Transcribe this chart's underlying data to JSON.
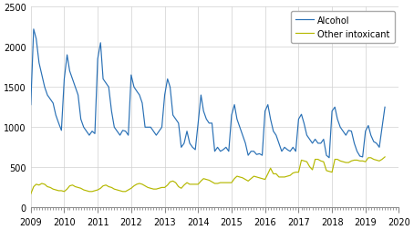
{
  "alcohol": [
    1280,
    2220,
    2100,
    1800,
    1650,
    1500,
    1400,
    1350,
    1300,
    1150,
    1050,
    960,
    1600,
    1900,
    1700,
    1600,
    1500,
    1400,
    1100,
    1000,
    950,
    900,
    950,
    920,
    1850,
    2050,
    1600,
    1550,
    1500,
    1200,
    1000,
    950,
    900,
    960,
    950,
    900,
    1650,
    1500,
    1450,
    1400,
    1300,
    1000,
    1000,
    1000,
    950,
    900,
    950,
    1000,
    1400,
    1600,
    1500,
    1150,
    1100,
    1050,
    750,
    800,
    950,
    800,
    750,
    720,
    1050,
    1400,
    1200,
    1100,
    1050,
    1050,
    700,
    750,
    700,
    720,
    750,
    700,
    1150,
    1280,
    1100,
    1000,
    900,
    800,
    650,
    700,
    700,
    660,
    670,
    650,
    1200,
    1280,
    1100,
    950,
    900,
    800,
    700,
    750,
    720,
    700,
    750,
    700,
    1100,
    1160,
    1050,
    900,
    850,
    800,
    850,
    800,
    800,
    850,
    650,
    620,
    1200,
    1250,
    1100,
    1000,
    950,
    900,
    960,
    950,
    800,
    700,
    640,
    630,
    950,
    1020,
    900,
    820,
    800,
    750,
    1000,
    1250
  ],
  "other": [
    170,
    260,
    290,
    280,
    300,
    290,
    260,
    250,
    230,
    220,
    210,
    210,
    200,
    230,
    270,
    280,
    260,
    250,
    240,
    220,
    210,
    200,
    200,
    210,
    220,
    240,
    270,
    280,
    260,
    250,
    230,
    220,
    210,
    200,
    200,
    220,
    240,
    270,
    290,
    300,
    290,
    270,
    250,
    240,
    230,
    230,
    240,
    250,
    250,
    280,
    320,
    330,
    310,
    260,
    240,
    280,
    310,
    290,
    290,
    290,
    290,
    330,
    360,
    350,
    340,
    320,
    300,
    300,
    310,
    310,
    310,
    310,
    310,
    360,
    390,
    380,
    370,
    350,
    330,
    360,
    390,
    380,
    370,
    360,
    350,
    420,
    490,
    420,
    420,
    380,
    380,
    380,
    390,
    400,
    430,
    440,
    440,
    590,
    580,
    570,
    510,
    470,
    600,
    600,
    580,
    570,
    460,
    450,
    440,
    600,
    600,
    580,
    570,
    560,
    560,
    580,
    590,
    590,
    580,
    580,
    570,
    620,
    620,
    600,
    590,
    580,
    600,
    630
  ],
  "alcohol_color": "#2970b5",
  "other_color": "#b5b800",
  "ylim": [
    0,
    2500
  ],
  "yticks": [
    0,
    500,
    1000,
    1500,
    2000,
    2500
  ],
  "legend_labels": [
    "Alcohol",
    "Other intoxicant"
  ],
  "grid_color": "#d0d0d0",
  "n_months": 128,
  "figwidth": 4.54,
  "figheight": 2.53,
  "dpi": 100
}
